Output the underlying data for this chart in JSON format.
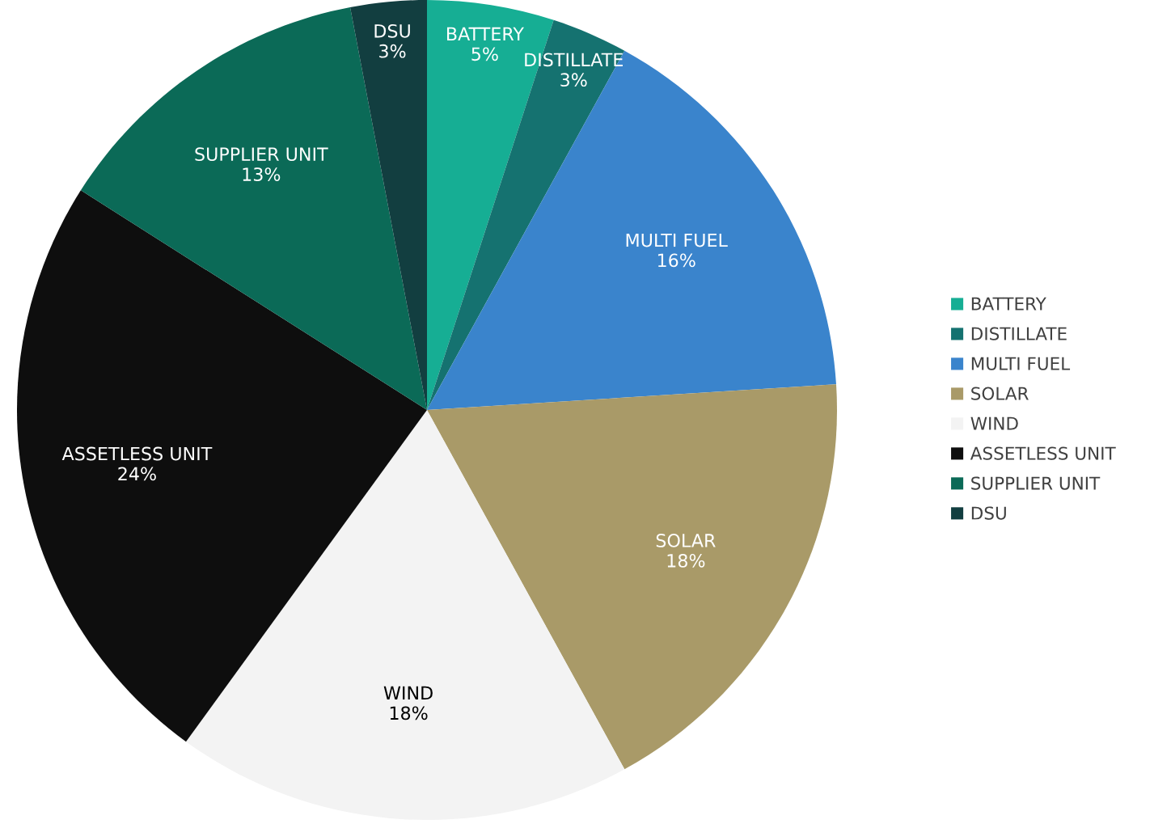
{
  "chart_data": {
    "type": "pie",
    "categories": [
      "BATTERY",
      "DISTILLATE",
      "MULTI FUEL",
      "SOLAR",
      "WIND",
      "ASSETLESS UNIT",
      "SUPPLIER UNIT",
      "DSU"
    ],
    "values": [
      5,
      3,
      16,
      18,
      18,
      24,
      13,
      3
    ],
    "colors": [
      "#16ae94",
      "#157270",
      "#3a84cc",
      "#a99a68",
      "#f3f3f3",
      "#0e0e0e",
      "#0b6a57",
      "#123e40"
    ],
    "value_labels": [
      "5%",
      "3%",
      "16%",
      "18%",
      "18%",
      "24%",
      "13%",
      "3%"
    ],
    "legend": "right"
  }
}
